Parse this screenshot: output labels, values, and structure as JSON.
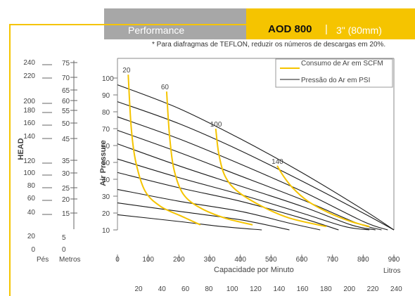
{
  "header": {
    "section_label": "Performance",
    "model": "AOD 800",
    "separator": "|",
    "size": "3\" (80mm)",
    "accent_color": "#f5c400",
    "gray_color": "#a7a7a7"
  },
  "note": "* Para diafragmas de TEFLON, reduzir os números de descargas em 20%.",
  "chart_data": {
    "type": "line",
    "xlabel": "Capacidade por Minuto",
    "x_unit": "Litros",
    "xlim": [
      0,
      900
    ],
    "x_ticks": [
      "0",
      "100",
      "200",
      "300",
      "400",
      "500",
      "600",
      "700",
      "800",
      "900"
    ],
    "x2_ticks": [
      "20",
      "40",
      "60",
      "80",
      "100",
      "120",
      "140",
      "160",
      "180",
      "200",
      "220",
      "240"
    ],
    "ylabel": "Air Pressure",
    "y_ticks": [
      "10",
      "20",
      "30",
      "40",
      "50",
      "60",
      "70",
      "80",
      "90",
      "100"
    ],
    "head_axis_label": "HEAD",
    "head_feet_unit": "Pés",
    "head_feet_ticks": [
      "240",
      "220",
      "200",
      "180",
      "160",
      "140",
      "120",
      "100",
      "80",
      "60",
      "40",
      "20",
      "0"
    ],
    "head_meters_unit": "Metros",
    "head_meters_ticks": [
      "75",
      "70",
      "65",
      "60",
      "55",
      "50",
      "45",
      "35",
      "30",
      "25",
      "20",
      "15",
      "5",
      "0"
    ],
    "legend_position": "top-right",
    "legend": [
      {
        "name": "Consumo de Ar em SCFM",
        "color": "#f5c400"
      },
      {
        "name": "Pressão do Ar em PSI",
        "color": "#1a1a1a"
      }
    ],
    "pressure_series_color": "#1a1a1a",
    "air_series_color": "#f5c400",
    "pressure_curves": [
      {
        "name": "100",
        "x": [
          0,
          200,
          400,
          600,
          800,
          900
        ],
        "y": [
          96,
          82,
          64,
          44,
          22,
          10
        ]
      },
      {
        "name": "90",
        "x": [
          0,
          200,
          400,
          600,
          800,
          900
        ],
        "y": [
          86,
          73,
          57,
          39,
          20,
          10
        ]
      },
      {
        "name": "80",
        "x": [
          0,
          200,
          400,
          600,
          800,
          880
        ],
        "y": [
          77,
          64,
          49,
          33,
          15,
          10
        ]
      },
      {
        "name": "70",
        "x": [
          0,
          200,
          400,
          600,
          780,
          860
        ],
        "y": [
          69,
          56,
          42,
          28,
          14,
          10
        ]
      },
      {
        "name": "60",
        "x": [
          0,
          200,
          400,
          600,
          760,
          840
        ],
        "y": [
          61,
          48,
          36,
          24,
          13,
          10
        ]
      },
      {
        "name": "50",
        "x": [
          0,
          200,
          400,
          600,
          740,
          820
        ],
        "y": [
          52,
          41,
          31,
          20,
          12,
          10
        ]
      },
      {
        "name": "40",
        "x": [
          0,
          200,
          400,
          600,
          720
        ],
        "y": [
          44,
          35,
          27,
          17,
          10
        ]
      },
      {
        "name": "30",
        "x": [
          0,
          200,
          400,
          560,
          660
        ],
        "y": [
          34,
          27,
          21,
          14,
          10
        ]
      },
      {
        "name": "20",
        "x": [
          0,
          200,
          400,
          560
        ],
        "y": [
          26,
          21,
          16,
          10
        ]
      },
      {
        "name": "10",
        "x": [
          0,
          200,
          340,
          470
        ],
        "y": [
          19,
          15,
          12,
          10
        ]
      }
    ],
    "air_curves": [
      {
        "label": "20",
        "x": [
          35,
          45,
          60,
          90,
          140,
          210,
          270
        ],
        "y": [
          102,
          70,
          50,
          33,
          24,
          18,
          13
        ]
      },
      {
        "label": "60",
        "x": [
          160,
          170,
          185,
          215,
          270,
          350,
          440
        ],
        "y": [
          92,
          65,
          45,
          31,
          23,
          17,
          13
        ]
      },
      {
        "label": "100",
        "x": [
          320,
          330,
          350,
          390,
          470,
          560,
          680
        ],
        "y": [
          70,
          55,
          42,
          33,
          24,
          17,
          12
        ]
      },
      {
        "label": "140",
        "x": [
          520,
          540,
          570,
          620,
          690,
          760,
          820
        ],
        "y": [
          48,
          42,
          35,
          27,
          20,
          15,
          12
        ]
      }
    ]
  }
}
